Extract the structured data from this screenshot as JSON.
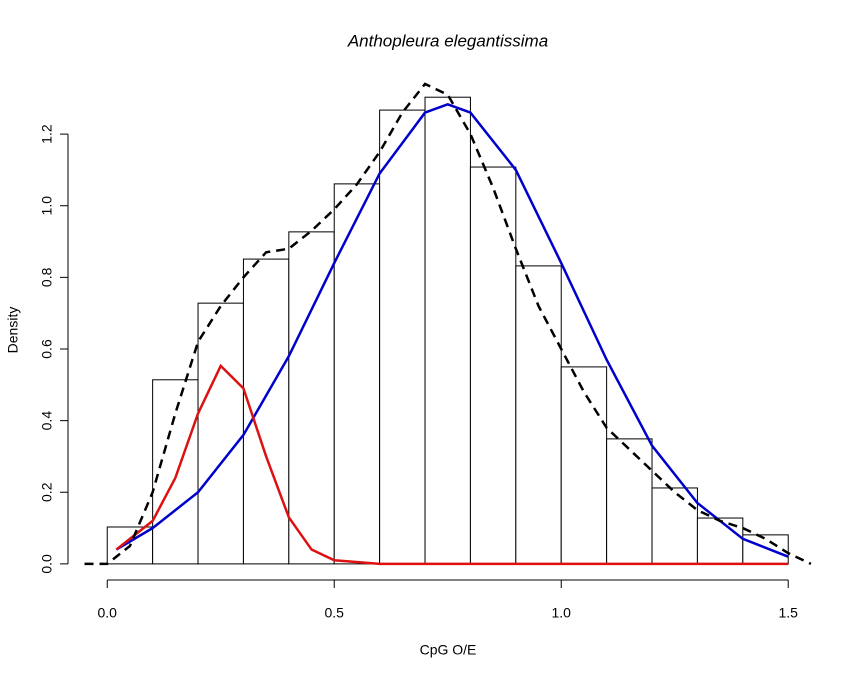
{
  "chart_data": {
    "type": "histogram",
    "title": "Anthopleura elegantissima",
    "x_label": "CpG O/E",
    "y_label": "Density",
    "bins": [
      0,
      0.1,
      0.2,
      0.3,
      0.4,
      0.5,
      0.6,
      0.7,
      0.8,
      0.9,
      1.0,
      1.1,
      1.2,
      1.3,
      1.4,
      1.5
    ],
    "values": [
      0.103,
      0.514,
      0.728,
      0.851,
      0.927,
      1.061,
      1.267,
      1.303,
      1.108,
      0.832,
      0.55,
      0.349,
      0.212,
      0.128,
      0.081
    ],
    "bar_fill": "#ffffff",
    "bar_edge": "#000000",
    "series": [
      {
        "color": "#0000cc",
        "linestyle": "solid",
        "x": [
          0.02,
          0.1,
          0.2,
          0.3,
          0.4,
          0.5,
          0.6,
          0.7,
          0.75,
          0.8,
          0.9,
          1.0,
          1.1,
          1.2,
          1.3,
          1.4,
          1.5
        ],
        "values": [
          0.04,
          0.1,
          0.2,
          0.36,
          0.58,
          0.84,
          1.09,
          1.26,
          1.283,
          1.26,
          1.1,
          0.84,
          0.57,
          0.33,
          0.17,
          0.07,
          0.02
        ]
      },
      {
        "color": "#dd1111",
        "linestyle": "solid",
        "x": [
          0.02,
          0.1,
          0.15,
          0.2,
          0.25,
          0.3,
          0.35,
          0.4,
          0.45,
          0.5,
          0.6,
          1.0,
          1.5
        ],
        "values": [
          0.04,
          0.12,
          0.24,
          0.42,
          0.553,
          0.49,
          0.3,
          0.13,
          0.04,
          0.01,
          0,
          0,
          0
        ]
      },
      {
        "color": "#000000",
        "linestyle": "dashed",
        "x": [
          -0.05,
          0,
          0.05,
          0.1,
          0.15,
          0.2,
          0.25,
          0.3,
          0.35,
          0.4,
          0.45,
          0.5,
          0.55,
          0.6,
          0.65,
          0.7,
          0.75,
          0.8,
          0.85,
          0.9,
          0.95,
          1.0,
          1.05,
          1.1,
          1.15,
          1.2,
          1.25,
          1.3,
          1.35,
          1.4,
          1.45,
          1.5,
          1.55
        ],
        "values": [
          0,
          0,
          0.05,
          0.2,
          0.42,
          0.62,
          0.72,
          0.8,
          0.87,
          0.88,
          0.93,
          0.99,
          1.06,
          1.15,
          1.26,
          1.34,
          1.31,
          1.2,
          1.05,
          0.88,
          0.72,
          0.6,
          0.48,
          0.38,
          0.32,
          0.26,
          0.2,
          0.15,
          0.12,
          0.1,
          0.07,
          0.03,
          0
        ]
      }
    ],
    "xlim": [
      -0.06,
      1.57
    ],
    "ylim": [
      -0.045,
      1.365
    ],
    "xticks": [
      {
        "value": 0,
        "label": "0.0"
      },
      0.5,
      {
        "value": 1,
        "label": "1.0"
      },
      1.5
    ],
    "yticks": [
      {
        "value": 0,
        "label": "0.0"
      },
      0.2,
      0.4,
      0.6,
      0.8,
      {
        "value": 1,
        "label": "1.0"
      },
      1.2
    ],
    "grid": false
  }
}
